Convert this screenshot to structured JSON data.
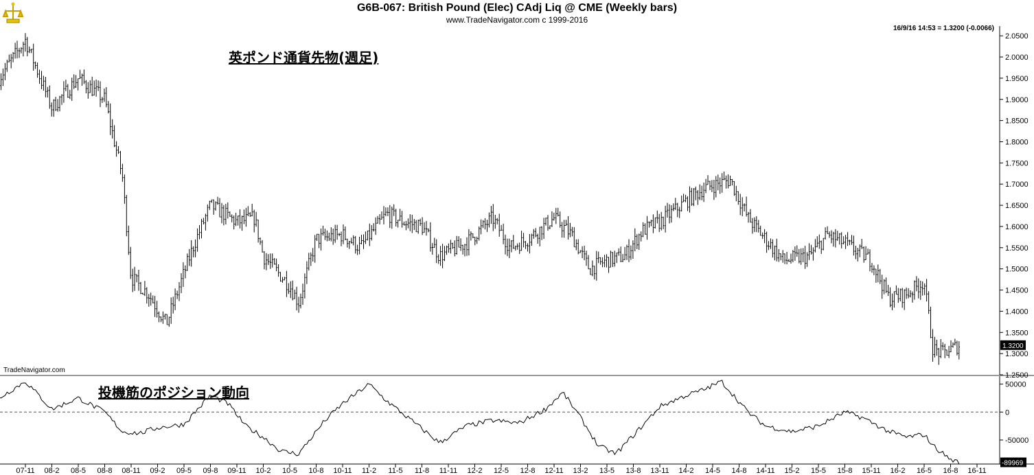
{
  "header": {
    "title": "G6B-067:  British Pound (Elec) CAdj Liq @ CME  (Weekly bars)",
    "subtitle": "www.TradeNavigator.com c  1999-2016",
    "quote": "16/9/16 14:53 = 1.3200 (-0.0066)",
    "watermark": "TradeNavigator.com"
  },
  "annotations": {
    "price_label": "英ポンド通貨先物(週足)",
    "cot_label": "投機筋のポジション動向"
  },
  "colors": {
    "bars": "#000000",
    "axis": "#000000",
    "grid": "#888888",
    "last_tag_bg": "#000000",
    "last_tag_fg": "#ffffff"
  },
  "chart_data": [
    {
      "type": "line",
      "title": "British Pound (Elec) CAdj Liq @ CME (Weekly bars)",
      "ylim": [
        1.25,
        2.06
      ],
      "y_ticks": [
        "2.0500",
        "2.0000",
        "1.9500",
        "1.9000",
        "1.8500",
        "1.8000",
        "1.7500",
        "1.7000",
        "1.6500",
        "1.6000",
        "1.5500",
        "1.5000",
        "1.4500",
        "1.4000",
        "1.3500",
        "1.3000",
        "1.2500"
      ],
      "last_value_label": "1.3200",
      "x_tick_labels": [
        "07-11",
        "08-2",
        "08-5",
        "08-8",
        "08-11",
        "09-2",
        "09-5",
        "09-8",
        "09-11",
        "10-2",
        "10-5",
        "10-8",
        "10-11",
        "11-2",
        "11-5",
        "11-8",
        "11-11",
        "12-2",
        "12-5",
        "12-8",
        "12-11",
        "13-2",
        "13-5",
        "13-8",
        "13-11",
        "14-2",
        "14-5",
        "14-8",
        "14-11",
        "15-2",
        "15-5",
        "15-8",
        "15-11",
        "16-2",
        "16-5",
        "16-8",
        "16-11"
      ],
      "x": [
        "2007-08",
        "2007-11",
        "2008-02",
        "2008-05",
        "2008-08",
        "2008-10",
        "2008-11",
        "2009-01",
        "2009-03",
        "2009-06",
        "2009-08",
        "2009-11",
        "2010-01",
        "2010-02",
        "2010-05",
        "2010-06",
        "2010-08",
        "2010-11",
        "2011-01",
        "2011-04",
        "2011-06",
        "2011-08",
        "2011-10",
        "2012-01",
        "2012-04",
        "2012-06",
        "2012-08",
        "2012-11",
        "2013-01",
        "2013-03",
        "2013-05",
        "2013-07",
        "2013-09",
        "2013-11",
        "2014-02",
        "2014-04",
        "2014-07",
        "2014-09",
        "2014-11",
        "2015-01",
        "2015-04",
        "2015-06",
        "2015-08",
        "2015-11",
        "2016-01",
        "2016-03",
        "2016-05",
        "2016-06",
        "2016-07",
        "2016-09"
      ],
      "values": [
        1.95,
        2.04,
        1.88,
        1.95,
        1.9,
        1.72,
        1.48,
        1.44,
        1.37,
        1.55,
        1.65,
        1.61,
        1.62,
        1.53,
        1.46,
        1.42,
        1.57,
        1.58,
        1.55,
        1.63,
        1.61,
        1.6,
        1.53,
        1.56,
        1.62,
        1.55,
        1.57,
        1.62,
        1.58,
        1.5,
        1.52,
        1.53,
        1.59,
        1.61,
        1.66,
        1.69,
        1.71,
        1.62,
        1.57,
        1.52,
        1.53,
        1.58,
        1.56,
        1.52,
        1.43,
        1.44,
        1.47,
        1.31,
        1.3,
        1.32
      ]
    },
    {
      "type": "line",
      "title": "Speculator net position",
      "ylim": [
        -93000,
        63000
      ],
      "y_ticks": [
        "50000",
        "0",
        "-50000"
      ],
      "zero_line": "dashed",
      "last_value_label": "-89969",
      "x": [
        "2007-08",
        "2007-11",
        "2008-02",
        "2008-05",
        "2008-08",
        "2008-10",
        "2008-12",
        "2009-02",
        "2009-05",
        "2009-08",
        "2009-10",
        "2009-12",
        "2010-02",
        "2010-04",
        "2010-06",
        "2010-09",
        "2010-11",
        "2011-02",
        "2011-04",
        "2011-06",
        "2011-08",
        "2011-10",
        "2012-01",
        "2012-04",
        "2012-07",
        "2012-10",
        "2012-12",
        "2013-02",
        "2013-04",
        "2013-06",
        "2013-09",
        "2013-11",
        "2014-02",
        "2014-04",
        "2014-06",
        "2014-09",
        "2014-11",
        "2015-02",
        "2015-05",
        "2015-08",
        "2015-10",
        "2016-01",
        "2016-03",
        "2016-05",
        "2016-06",
        "2016-08",
        "2016-09"
      ],
      "values": [
        25000,
        55000,
        5000,
        25000,
        0,
        -35000,
        -38000,
        -28000,
        -22000,
        30000,
        15000,
        -25000,
        -45000,
        -70000,
        -75000,
        -15000,
        15000,
        50000,
        20000,
        -5000,
        -30000,
        -55000,
        -25000,
        -15000,
        -20000,
        5000,
        35000,
        -10000,
        -60000,
        -75000,
        -25000,
        10000,
        30000,
        40000,
        55000,
        0,
        -25000,
        -35000,
        -25000,
        0,
        -10000,
        -35000,
        -45000,
        -40000,
        -60000,
        -85000,
        -89969
      ]
    }
  ]
}
